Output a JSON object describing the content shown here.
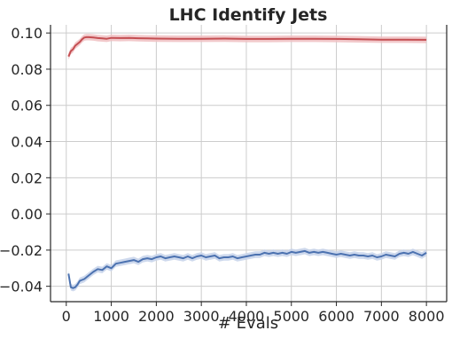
{
  "chart_data": {
    "type": "line",
    "title": "LHC Identify Jets",
    "xlabel": "# Evals",
    "ylabel": "",
    "xlim": [
      -350,
      8450
    ],
    "ylim": [
      -0.0485,
      0.1045
    ],
    "xticks": [
      0,
      1000,
      2000,
      3000,
      4000,
      5000,
      6000,
      7000,
      8000
    ],
    "xtick_labels": [
      "0",
      "1000",
      "2000",
      "3000",
      "4000",
      "5000",
      "6000",
      "7000",
      "8000"
    ],
    "yticks": [
      -0.04,
      -0.02,
      0.0,
      0.02,
      0.04,
      0.06,
      0.08,
      0.1
    ],
    "ytick_labels": [
      "−0.04",
      "−0.02",
      "0.00",
      "0.02",
      "0.04",
      "0.06",
      "0.08",
      "0.10"
    ],
    "grid": true,
    "series": [
      {
        "color": "#c44e52",
        "band_color": "#f0c0c2",
        "band_halfwidth": 0.0018,
        "x": [
          50,
          100,
          150,
          200,
          250,
          300,
          350,
          400,
          450,
          500,
          600,
          700,
          800,
          900,
          1000,
          1200,
          1400,
          1600,
          1800,
          2000,
          2500,
          3000,
          3500,
          4000,
          4500,
          5000,
          5500,
          6000,
          6500,
          7000,
          7500,
          8000
        ],
        "values": [
          0.087,
          0.09,
          0.091,
          0.093,
          0.094,
          0.095,
          0.0965,
          0.0975,
          0.0977,
          0.0977,
          0.0975,
          0.0972,
          0.097,
          0.0968,
          0.0973,
          0.0972,
          0.0973,
          0.0971,
          0.097,
          0.0969,
          0.0968,
          0.0968,
          0.0969,
          0.0967,
          0.0967,
          0.0968,
          0.0968,
          0.0967,
          0.0965,
          0.0963,
          0.0963,
          0.0962
        ]
      },
      {
        "color": "#4c72b0",
        "band_color": "#c5d2ea",
        "band_halfwidth": 0.0018,
        "x": [
          50,
          100,
          150,
          200,
          250,
          300,
          400,
          500,
          600,
          700,
          800,
          900,
          1000,
          1100,
          1200,
          1300,
          1400,
          1500,
          1600,
          1700,
          1800,
          1900,
          2000,
          2100,
          2200,
          2300,
          2400,
          2500,
          2600,
          2700,
          2800,
          2900,
          3000,
          3100,
          3200,
          3300,
          3400,
          3500,
          3600,
          3700,
          3800,
          3900,
          4000,
          4100,
          4200,
          4300,
          4400,
          4500,
          4600,
          4700,
          4800,
          4900,
          5000,
          5100,
          5200,
          5300,
          5400,
          5500,
          5600,
          5700,
          5800,
          5900,
          6000,
          6100,
          6200,
          6300,
          6400,
          6500,
          6600,
          6700,
          6800,
          6900,
          7000,
          7100,
          7200,
          7300,
          7400,
          7500,
          7600,
          7700,
          7800,
          7900,
          8000
        ],
        "values": [
          -0.033,
          -0.0405,
          -0.041,
          -0.0405,
          -0.039,
          -0.037,
          -0.036,
          -0.034,
          -0.032,
          -0.0305,
          -0.031,
          -0.029,
          -0.03,
          -0.0275,
          -0.027,
          -0.0265,
          -0.026,
          -0.0255,
          -0.0265,
          -0.025,
          -0.0245,
          -0.025,
          -0.024,
          -0.0235,
          -0.0245,
          -0.024,
          -0.0235,
          -0.024,
          -0.0245,
          -0.0235,
          -0.0245,
          -0.0235,
          -0.023,
          -0.024,
          -0.0235,
          -0.023,
          -0.0245,
          -0.024,
          -0.024,
          -0.0235,
          -0.0245,
          -0.024,
          -0.0235,
          -0.023,
          -0.0225,
          -0.0225,
          -0.0215,
          -0.022,
          -0.0215,
          -0.022,
          -0.0215,
          -0.022,
          -0.021,
          -0.0215,
          -0.021,
          -0.0205,
          -0.0215,
          -0.021,
          -0.0215,
          -0.021,
          -0.0215,
          -0.022,
          -0.0225,
          -0.022,
          -0.0225,
          -0.023,
          -0.0225,
          -0.023,
          -0.023,
          -0.0235,
          -0.023,
          -0.024,
          -0.0235,
          -0.0225,
          -0.023,
          -0.0235,
          -0.022,
          -0.0215,
          -0.022,
          -0.021,
          -0.022,
          -0.023,
          -0.0215
        ]
      }
    ]
  }
}
